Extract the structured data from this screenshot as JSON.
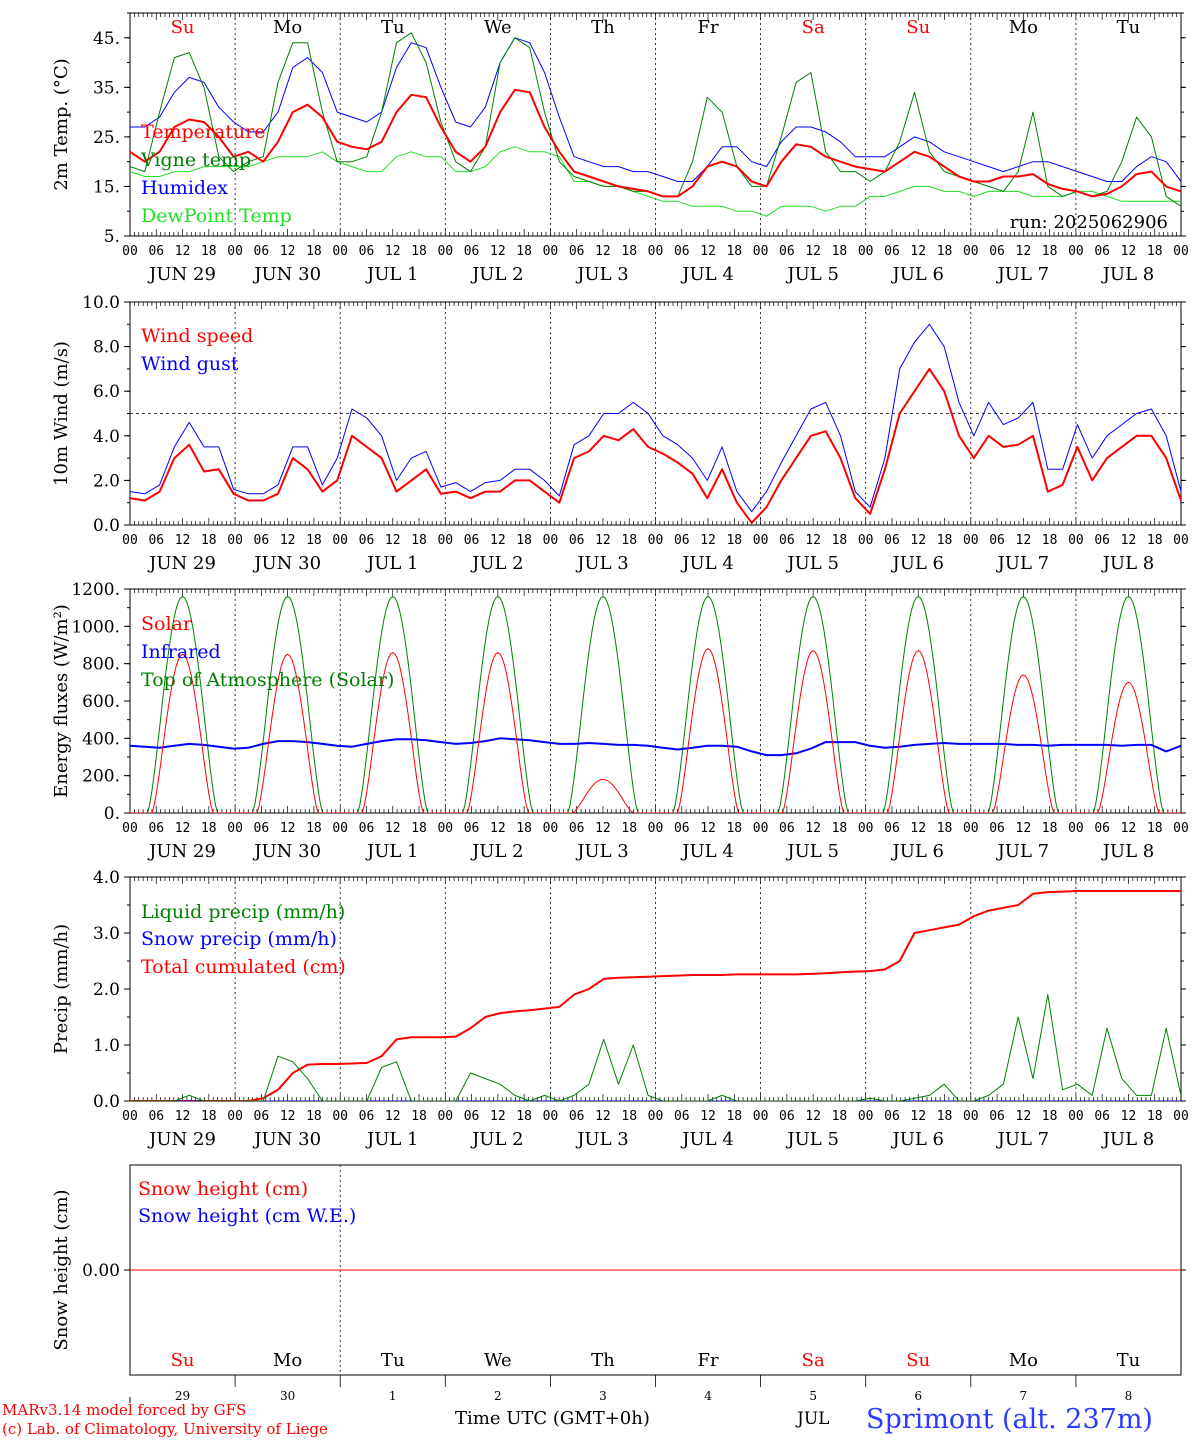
{
  "location": "Sprimont (alt. 237m)",
  "run_label": "run: 2025062906",
  "footer": {
    "credit_line1": "MARv3.14 model forced by GFS",
    "credit_line2": "(c) Lab. of Climatology, University of Liege",
    "time_label": "Time UTC (GMT+0h)",
    "month_label": "JUL"
  },
  "days": [
    {
      "dow": "Su",
      "date": "JUN 29",
      "num": "29",
      "weekend": true
    },
    {
      "dow": "Mo",
      "date": "JUN 30",
      "num": "30",
      "weekend": false
    },
    {
      "dow": "Tu",
      "date": "JUL  1",
      "num": "1",
      "weekend": false
    },
    {
      "dow": "We",
      "date": "JUL  2",
      "num": "2",
      "weekend": false
    },
    {
      "dow": "Th",
      "date": "JUL  3",
      "num": "3",
      "weekend": false
    },
    {
      "dow": "Fr",
      "date": "JUL  4",
      "num": "4",
      "weekend": false
    },
    {
      "dow": "Sa",
      "date": "JUL  5",
      "num": "5",
      "weekend": true
    },
    {
      "dow": "Su",
      "date": "JUL  6",
      "num": "6",
      "weekend": true
    },
    {
      "dow": "Mo",
      "date": "JUL  7",
      "num": "7",
      "weekend": false
    },
    {
      "dow": "Tu",
      "date": "JUL  8",
      "num": "8",
      "weekend": false
    }
  ],
  "hour_labels": [
    "00",
    "06",
    "12",
    "18"
  ],
  "end_hour_label": "00",
  "colors": {
    "red": "#ff0000",
    "green": "#008000",
    "blue": "#0000ff",
    "lightgreen": "#22dd22",
    "axis": "#000000",
    "weekend_day": "#ff0000"
  },
  "chart_data": [
    {
      "type": "line",
      "id": "temp",
      "ylabel": "2m Temp. (°C)",
      "ylim": [
        5,
        50
      ],
      "yticks": [
        5,
        15,
        25,
        35,
        45
      ],
      "ytick_labels": [
        "5.",
        "15.",
        "25.",
        "35.",
        "45."
      ],
      "x_hours_step": 6,
      "series": [
        {
          "name": "Temperature",
          "color": "#ff0000",
          "width": 2,
          "values": [
            22,
            20,
            22,
            27,
            28.5,
            28,
            25,
            21,
            22,
            20,
            24,
            30,
            31.5,
            29,
            24,
            23,
            22.5,
            24,
            30,
            33.5,
            33,
            27,
            22,
            20,
            23,
            30,
            34.5,
            34,
            27,
            22,
            18,
            17,
            16,
            15,
            14.5,
            14,
            13,
            13,
            15,
            19,
            20,
            19,
            16,
            15,
            20,
            23.5,
            23,
            21,
            20,
            19,
            18.5,
            18,
            20,
            22,
            21,
            19,
            17,
            16,
            16,
            17,
            17,
            17.5,
            15.5,
            14.5,
            14,
            13,
            13.5,
            15,
            17.5,
            18,
            15,
            14
          ]
        },
        {
          "name": "Vigne temp",
          "color": "#008000",
          "width": 1,
          "values": [
            19,
            18,
            30,
            41,
            42,
            35,
            21,
            18,
            20,
            21,
            36,
            44,
            44,
            30,
            20,
            20,
            21,
            30,
            44,
            46,
            40,
            28,
            20,
            18,
            23,
            40,
            45,
            43,
            30,
            20,
            17,
            16,
            15,
            15,
            14,
            14,
            13,
            13,
            20,
            33,
            30,
            19,
            15,
            15,
            25,
            36,
            38,
            22,
            18,
            18,
            16,
            18,
            24,
            34,
            22,
            18,
            17,
            16,
            15,
            14,
            18,
            30,
            15,
            13,
            14,
            13,
            14,
            20,
            29,
            25,
            13,
            11
          ]
        },
        {
          "name": "Humidex",
          "color": "#0000ff",
          "width": 1,
          "values": [
            27,
            27,
            29,
            34,
            37,
            36,
            31,
            28,
            26,
            26,
            30,
            39,
            41,
            38,
            30,
            29,
            28,
            30,
            39,
            44,
            43,
            35,
            28,
            27,
            31,
            40,
            45,
            44,
            38,
            29,
            21,
            20,
            19,
            19,
            18,
            18,
            17,
            16,
            16,
            19,
            23,
            23,
            20,
            19,
            24,
            27,
            27,
            26,
            24,
            21,
            21,
            21,
            23,
            25,
            24,
            22,
            21,
            20,
            19,
            18,
            19,
            20,
            20,
            19,
            18,
            17,
            16,
            16,
            19,
            21,
            20,
            16
          ]
        },
        {
          "name": "DewPoint Temp",
          "color": "#22dd22",
          "width": 1,
          "values": [
            18,
            17,
            17,
            18,
            18,
            19,
            19,
            19,
            19,
            20,
            21,
            21,
            21,
            22,
            20,
            19,
            18,
            18,
            21,
            22,
            21,
            21,
            18,
            18,
            19,
            22,
            23,
            22,
            22,
            21,
            16,
            16,
            15,
            15,
            14,
            13,
            12,
            12,
            11,
            11,
            11,
            10,
            10,
            9,
            11,
            11,
            11,
            10,
            11,
            11,
            13,
            13,
            14,
            15,
            15,
            14,
            14,
            13,
            14,
            14,
            14,
            13,
            13,
            13,
            14,
            14,
            13,
            12,
            12,
            12,
            12,
            12
          ]
        }
      ],
      "annotation": "run_label"
    },
    {
      "type": "line",
      "id": "wind",
      "ylabel": "10m Wind (m/s)",
      "ylim": [
        0,
        10
      ],
      "yticks": [
        0,
        2,
        4,
        6,
        8,
        10
      ],
      "ytick_labels": [
        "0.0",
        "2.0",
        "4.0",
        "6.0",
        "8.0",
        "10.0"
      ],
      "reference_line": 5,
      "series": [
        {
          "name": "Wind speed",
          "color": "#ff0000",
          "width": 2,
          "values": [
            1.2,
            1.1,
            1.5,
            3.0,
            3.6,
            2.4,
            2.5,
            1.4,
            1.1,
            1.1,
            1.4,
            3.0,
            2.5,
            1.5,
            2.0,
            4.0,
            3.5,
            3.0,
            1.5,
            2.0,
            2.5,
            1.4,
            1.5,
            1.2,
            1.5,
            1.5,
            2.0,
            2.0,
            1.5,
            1.0,
            3.0,
            3.3,
            4.0,
            3.8,
            4.3,
            3.5,
            3.2,
            2.8,
            2.3,
            1.2,
            2.5,
            1.0,
            0.1,
            0.8,
            2.0,
            3.0,
            4.0,
            4.2,
            3.0,
            1.2,
            0.5,
            2.5,
            5.0,
            6.0,
            7.0,
            6.0,
            4.0,
            3.0,
            4.0,
            3.5,
            3.6,
            4.0,
            1.5,
            1.8,
            3.5,
            2.0,
            3.0,
            3.5,
            4.0,
            4.0,
            3.0,
            1.1
          ]
        },
        {
          "name": "Wind gust",
          "color": "#0000ff",
          "width": 1,
          "values": [
            1.5,
            1.4,
            1.8,
            3.5,
            4.6,
            3.5,
            3.5,
            1.6,
            1.4,
            1.4,
            1.8,
            3.5,
            3.5,
            1.8,
            3.0,
            5.2,
            4.8,
            4.0,
            2.0,
            3.0,
            3.3,
            1.7,
            1.9,
            1.5,
            1.9,
            2.0,
            2.5,
            2.5,
            2.0,
            1.3,
            3.6,
            4.0,
            5.0,
            5.0,
            5.5,
            5.0,
            4.0,
            3.6,
            3.0,
            2.0,
            3.5,
            1.5,
            0.6,
            1.5,
            2.8,
            4.0,
            5.2,
            5.5,
            4.0,
            1.5,
            0.8,
            3.0,
            7.0,
            8.2,
            9.0,
            8.0,
            5.5,
            4.0,
            5.5,
            4.5,
            4.8,
            5.5,
            2.5,
            2.5,
            4.5,
            3.0,
            4.0,
            4.5,
            5.0,
            5.2,
            4.0,
            1.5
          ]
        }
      ]
    },
    {
      "type": "line",
      "id": "energy",
      "ylabel": "Energy fluxes (W/m²)",
      "ylim": [
        0,
        1200
      ],
      "yticks": [
        0,
        200,
        400,
        600,
        800,
        1000,
        1200
      ],
      "ytick_labels": [
        "0.",
        "200.",
        "400.",
        "600.",
        "800.",
        "1000.",
        "1200."
      ],
      "series": [
        {
          "name": "Solar",
          "color": "#ff0000",
          "width": 1,
          "daily_peaks": [
            850,
            850,
            860,
            860,
            180,
            880,
            870,
            870,
            740,
            700
          ]
        },
        {
          "name": "Infrared",
          "color": "#0000ff",
          "width": 2,
          "values": [
            360,
            355,
            350,
            360,
            370,
            365,
            355,
            345,
            350,
            370,
            385,
            385,
            380,
            370,
            360,
            355,
            370,
            385,
            395,
            395,
            390,
            380,
            370,
            375,
            385,
            400,
            395,
            390,
            380,
            370,
            370,
            375,
            370,
            365,
            365,
            360,
            350,
            340,
            350,
            360,
            360,
            355,
            330,
            310,
            310,
            320,
            345,
            380,
            380,
            380,
            360,
            350,
            355,
            365,
            370,
            375,
            370,
            370,
            370,
            370,
            365,
            365,
            360,
            365,
            365,
            365,
            365,
            360,
            365,
            365,
            330,
            360
          ]
        },
        {
          "name": "Top of Atmosphere (Solar)",
          "color": "#008000",
          "width": 1,
          "daily_peak": 1160
        }
      ]
    },
    {
      "type": "line",
      "id": "precip",
      "ylabel": "Precip (mm/h)",
      "ylim": [
        0,
        4
      ],
      "yticks": [
        0,
        1,
        2,
        3,
        4
      ],
      "ytick_labels": [
        "0.0",
        "1.0",
        "2.0",
        "3.0",
        "4.0"
      ],
      "series": [
        {
          "name": "Liquid precip (mm/h)",
          "color": "#008000",
          "width": 1,
          "values": [
            0,
            0,
            0,
            0,
            0.1,
            0,
            0,
            0,
            0,
            0,
            0.8,
            0.7,
            0.4,
            0,
            0,
            0,
            0,
            0.6,
            0.7,
            0,
            0,
            0,
            0,
            0.5,
            0.4,
            0.3,
            0.1,
            0,
            0.1,
            0,
            0.1,
            0.3,
            1.1,
            0.3,
            1.0,
            0.1,
            0,
            0,
            0,
            0,
            0.1,
            0,
            0,
            0,
            0,
            0,
            0,
            0,
            0,
            0,
            0.05,
            0,
            0,
            0.05,
            0.1,
            0.3,
            0,
            0,
            0.1,
            0.3,
            1.5,
            0.4,
            1.9,
            0.2,
            0.3,
            0.1,
            1.3,
            0.4,
            0.1,
            0.1,
            1.3,
            0.1
          ]
        },
        {
          "name": "Snow precip (mm/h)",
          "color": "#0000ff",
          "width": 1,
          "values": [
            0,
            0,
            0,
            0,
            0,
            0,
            0,
            0,
            0,
            0,
            0,
            0,
            0,
            0,
            0,
            0,
            0,
            0,
            0,
            0,
            0,
            0,
            0,
            0,
            0,
            0,
            0,
            0,
            0,
            0,
            0,
            0,
            0,
            0,
            0,
            0,
            0,
            0,
            0,
            0,
            0,
            0,
            0,
            0,
            0,
            0,
            0,
            0,
            0,
            0,
            0,
            0,
            0,
            0,
            0,
            0,
            0,
            0,
            0,
            0,
            0,
            0,
            0,
            0,
            0,
            0,
            0,
            0,
            0,
            0,
            0,
            0
          ]
        },
        {
          "name": "Total cumulated (cm)",
          "color": "#ff0000",
          "width": 2,
          "values": [
            0,
            0,
            0,
            0,
            0,
            0,
            0,
            0,
            0,
            0.05,
            0.2,
            0.5,
            0.65,
            0.66,
            0.66,
            0.67,
            0.68,
            0.8,
            1.1,
            1.14,
            1.14,
            1.14,
            1.15,
            1.3,
            1.5,
            1.57,
            1.6,
            1.62,
            1.65,
            1.68,
            1.9,
            2.0,
            2.18,
            2.2,
            2.21,
            2.22,
            2.23,
            2.24,
            2.25,
            2.25,
            2.25,
            2.26,
            2.26,
            2.26,
            2.26,
            2.26,
            2.27,
            2.28,
            2.3,
            2.31,
            2.32,
            2.35,
            2.5,
            3.0,
            3.05,
            3.1,
            3.15,
            3.3,
            3.4,
            3.45,
            3.5,
            3.7,
            3.73,
            3.74,
            3.75,
            3.75,
            3.75,
            3.75,
            3.75,
            3.75,
            3.75,
            3.75
          ]
        }
      ]
    },
    {
      "type": "line",
      "id": "snow",
      "ylabel": "Snow height (cm)",
      "ylim": [
        -1,
        1
      ],
      "yticks": [
        0
      ],
      "ytick_labels": [
        "0.00"
      ],
      "series": [
        {
          "name": "Snow height (cm)",
          "color": "#ff0000",
          "width": 1,
          "constant": 0
        },
        {
          "name": "Snow height (cm W.E.)",
          "color": "#0000ff",
          "width": 1,
          "constant": 0
        }
      ]
    }
  ]
}
